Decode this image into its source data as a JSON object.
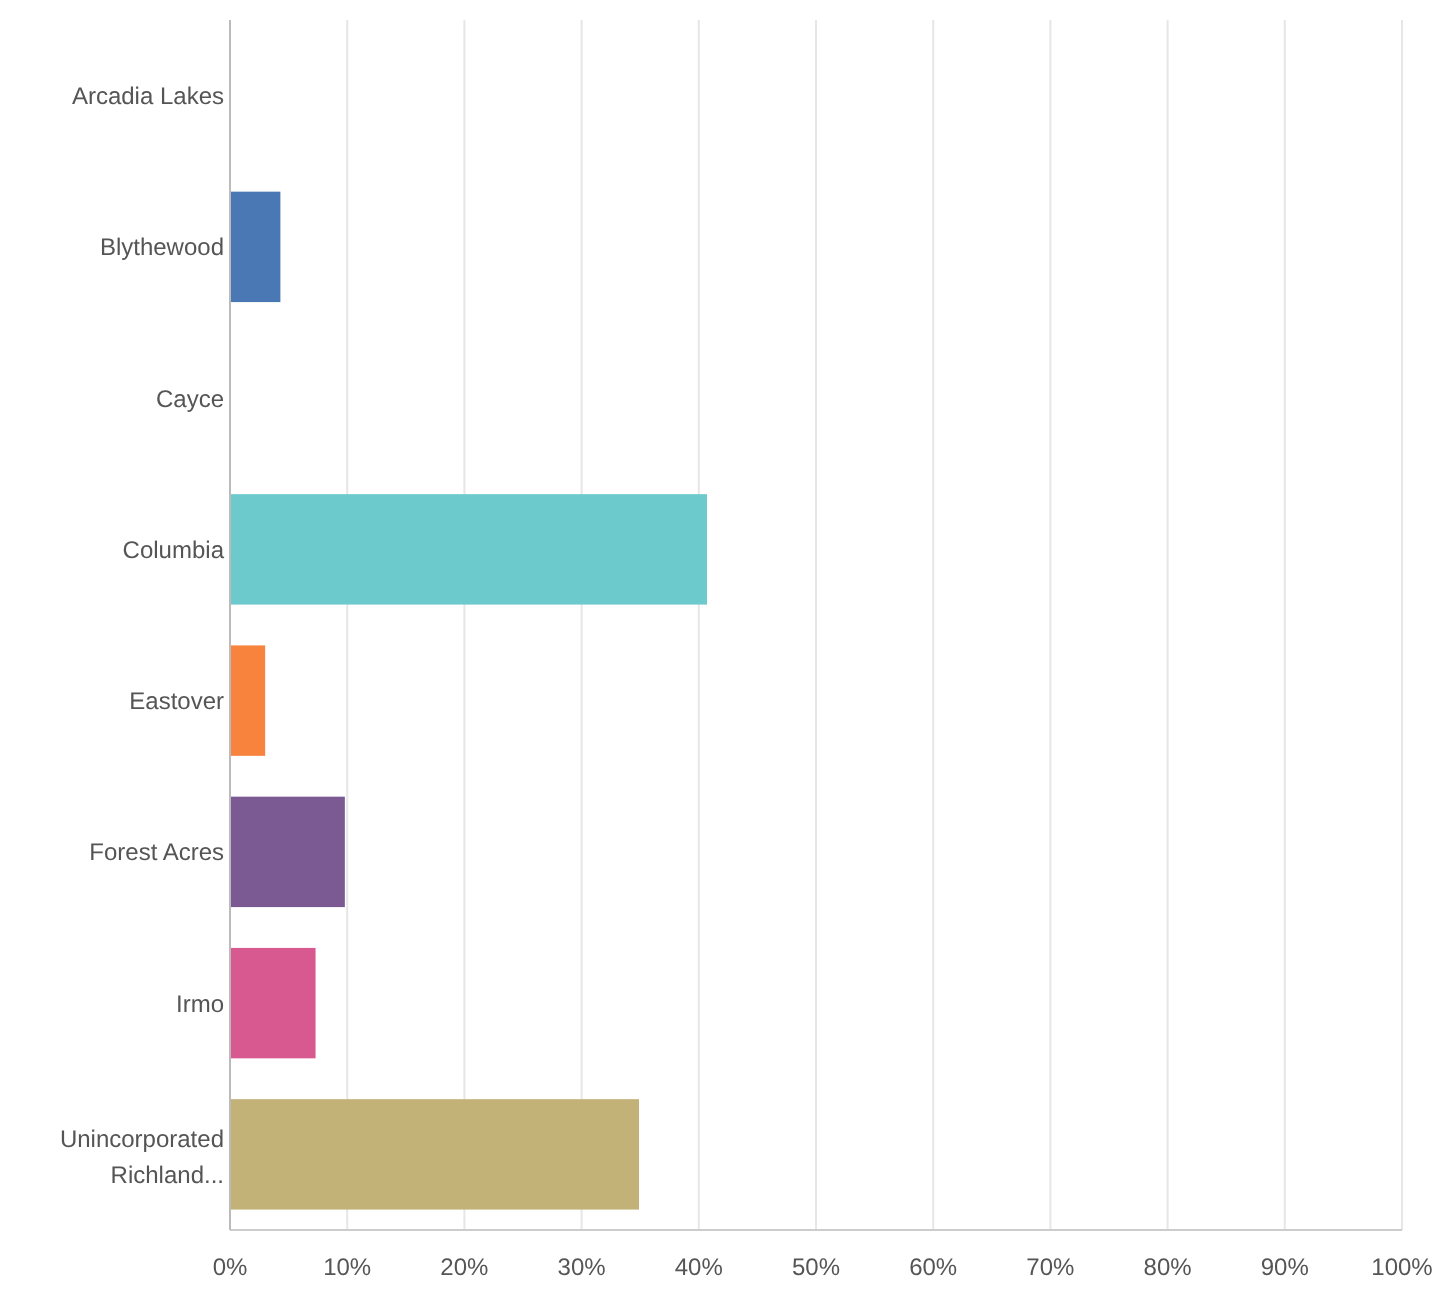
{
  "chart_data": {
    "type": "bar",
    "orientation": "horizontal",
    "categories": [
      "Arcadia Lakes",
      "Blythewood",
      "Cayce",
      "Columbia",
      "Eastover",
      "Forest Acres",
      "Irmo",
      "Unincorporated Richland..."
    ],
    "values": [
      0,
      4.3,
      0,
      40.7,
      3,
      9.8,
      7.3,
      34.9
    ],
    "colors": [
      "#2d9fd8",
      "#4a78b5",
      "#a5d36b",
      "#6cc9cc",
      "#f7833c",
      "#7b5a93",
      "#d75990",
      "#c2b277"
    ],
    "xlim": [
      0,
      100
    ],
    "xticks": [
      {
        "value": 0,
        "label": "0%"
      },
      {
        "value": 10,
        "label": "10%"
      },
      {
        "value": 20,
        "label": "20%"
      },
      {
        "value": 30,
        "label": "30%"
      },
      {
        "value": 40,
        "label": "40%"
      },
      {
        "value": 50,
        "label": "50%"
      },
      {
        "value": 60,
        "label": "60%"
      },
      {
        "value": 70,
        "label": "70%"
      },
      {
        "value": 80,
        "label": "80%"
      },
      {
        "value": 90,
        "label": "90%"
      },
      {
        "value": 100,
        "label": "100%"
      }
    ],
    "grid": "x"
  }
}
